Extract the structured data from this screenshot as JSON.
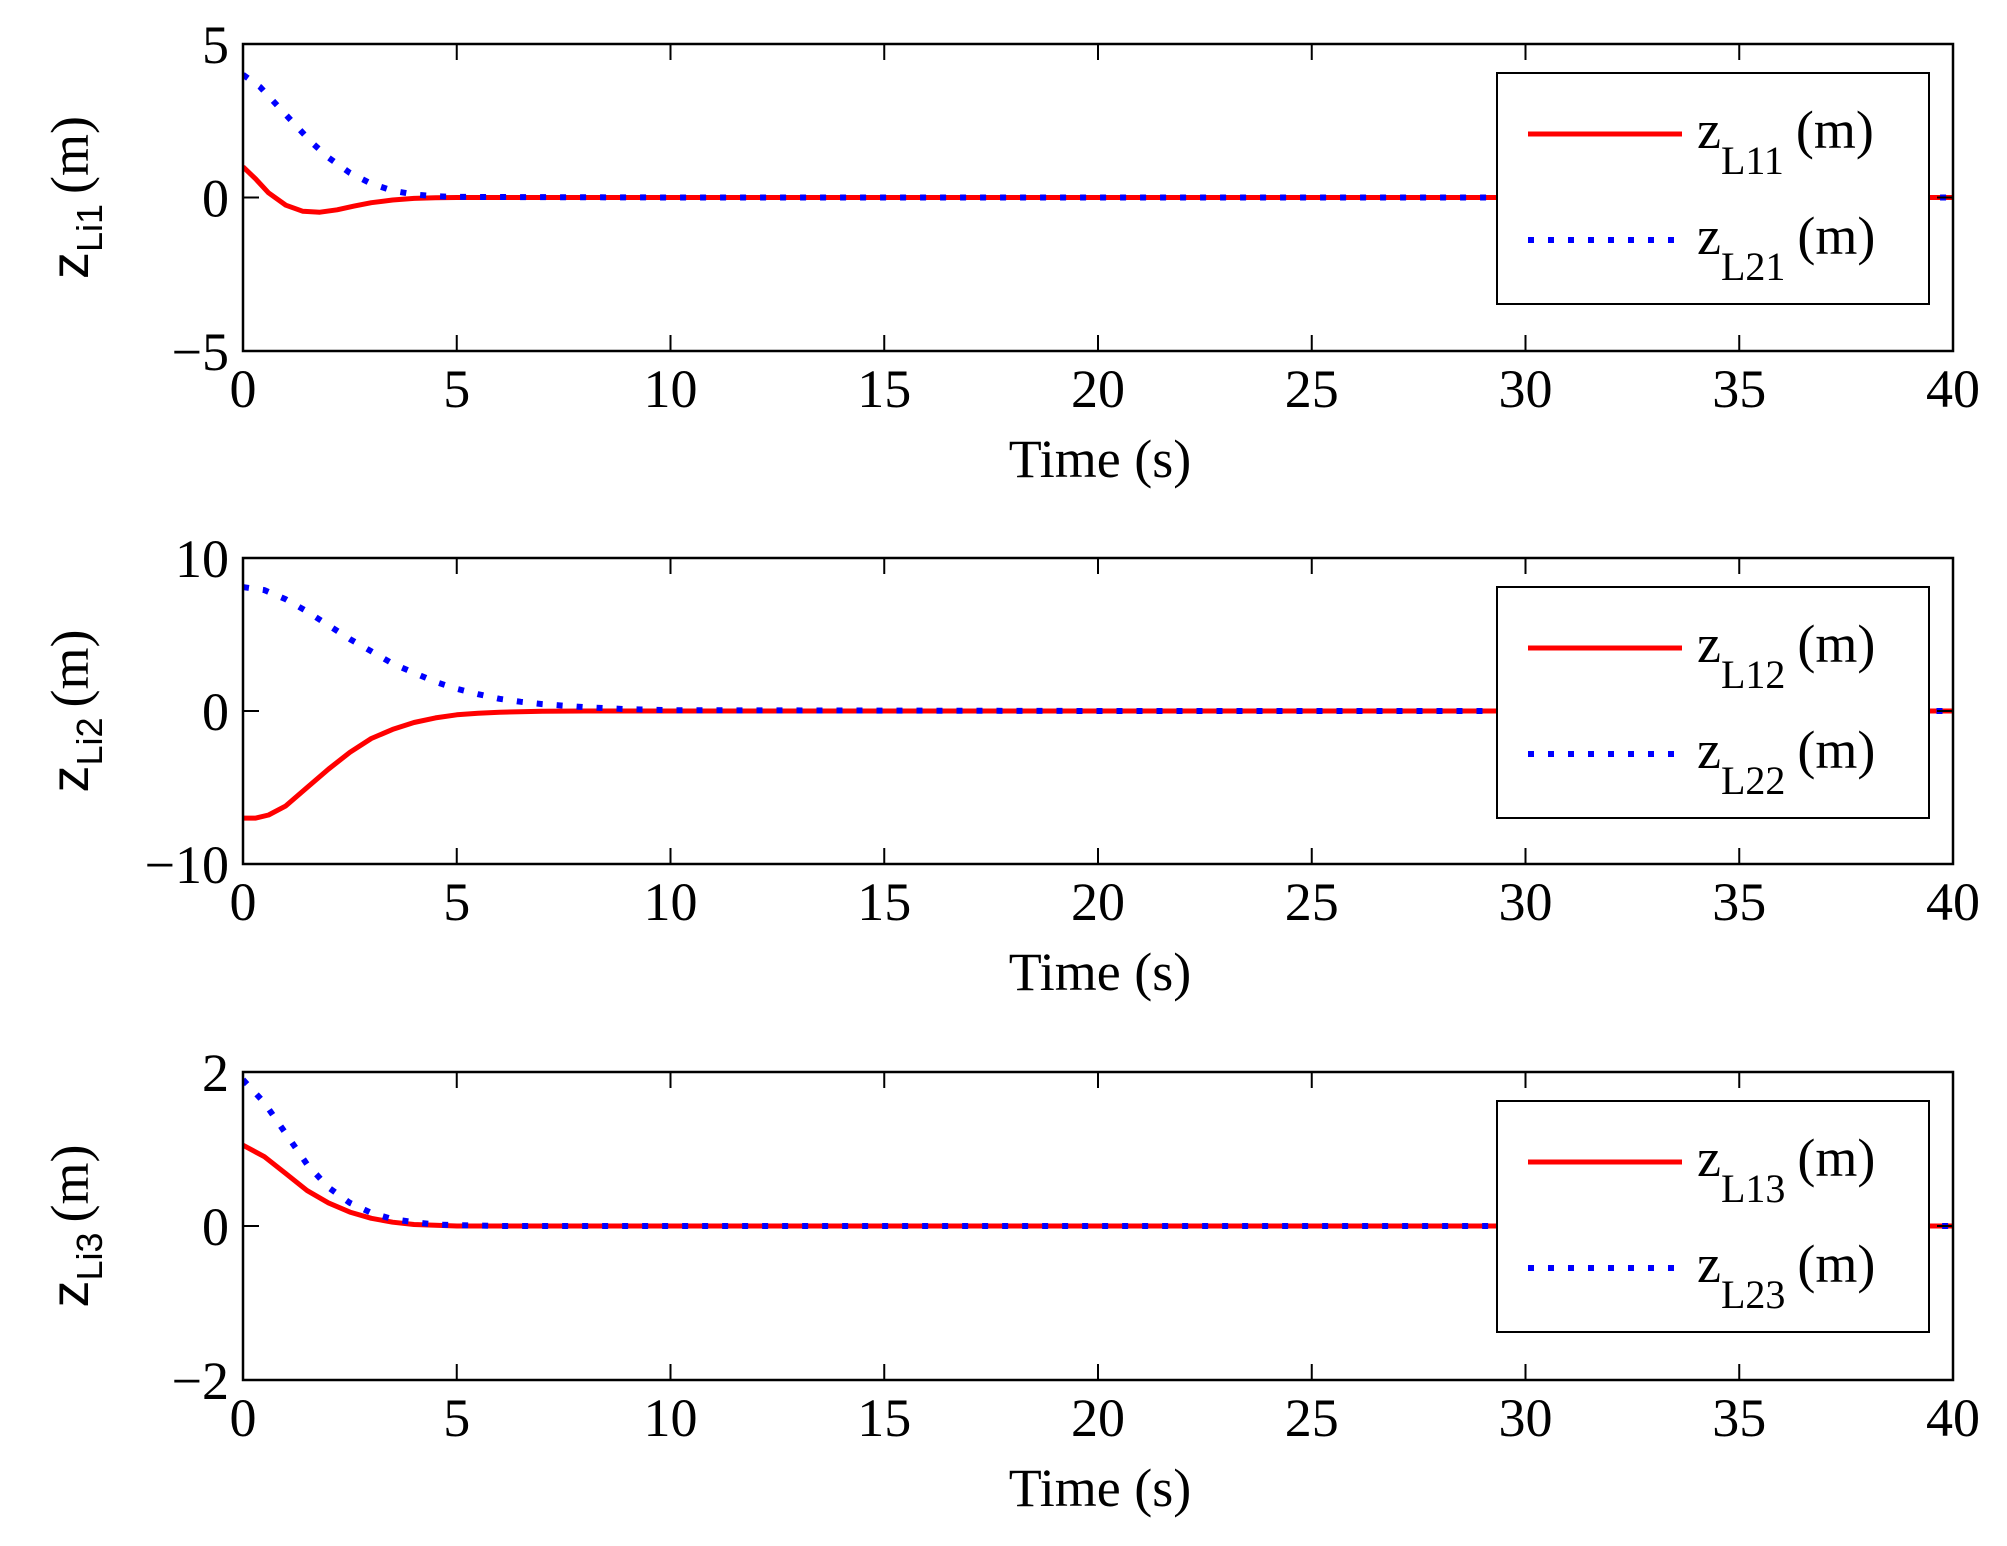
{
  "chart_data": [
    {
      "type": "line",
      "xlabel": "Time (s)",
      "ylabel": "z",
      "ylabel_sub": "Li1",
      "ylabel_unit": "(m)",
      "xlim": [
        0,
        40
      ],
      "ylim": [
        -5,
        5
      ],
      "xticks": [
        0,
        5,
        10,
        15,
        20,
        25,
        30,
        35,
        40
      ],
      "yticks": [
        -5,
        0,
        5
      ],
      "ytick_labels": [
        "−5",
        "0",
        "5"
      ],
      "legend_position": "top-right",
      "series": [
        {
          "name": "zL11 (m)",
          "legend_main": "z",
          "legend_sub": "L11",
          "legend_unit": "(m)",
          "color": "#ff0000",
          "style": "solid",
          "x": [
            0,
            0.3,
            0.6,
            1.0,
            1.4,
            1.8,
            2.2,
            2.6,
            3.0,
            3.5,
            4.0,
            4.5,
            5,
            10,
            20,
            30,
            40
          ],
          "y": [
            1.0,
            0.6,
            0.15,
            -0.25,
            -0.45,
            -0.48,
            -0.4,
            -0.28,
            -0.17,
            -0.08,
            -0.03,
            -0.01,
            0,
            0,
            0,
            0,
            0
          ]
        },
        {
          "name": "zL21 (m)",
          "legend_main": "z",
          "legend_sub": "L21",
          "legend_unit": "(m)",
          "color": "#0000ff",
          "style": "dotted",
          "x": [
            0,
            0.4,
            0.8,
            1.2,
            1.6,
            2.0,
            2.5,
            3.0,
            3.5,
            4.0,
            4.5,
            5,
            10,
            20,
            30,
            40
          ],
          "y": [
            4.0,
            3.6,
            3.0,
            2.4,
            1.8,
            1.3,
            0.8,
            0.45,
            0.22,
            0.1,
            0.04,
            0.02,
            0,
            0,
            0,
            0
          ]
        }
      ]
    },
    {
      "type": "line",
      "xlabel": "Time (s)",
      "ylabel": "z",
      "ylabel_sub": "Li2",
      "ylabel_unit": "(m)",
      "xlim": [
        0,
        40
      ],
      "ylim": [
        -10,
        10
      ],
      "xticks": [
        0,
        5,
        10,
        15,
        20,
        25,
        30,
        35,
        40
      ],
      "yticks": [
        -10,
        0,
        10
      ],
      "ytick_labels": [
        "−10",
        "0",
        "10"
      ],
      "legend_position": "top-right",
      "series": [
        {
          "name": "zL12 (m)",
          "legend_main": "z",
          "legend_sub": "L12",
          "legend_unit": "(m)",
          "color": "#ff0000",
          "style": "solid",
          "x": [
            0,
            0.3,
            0.6,
            1.0,
            1.5,
            2.0,
            2.5,
            3.0,
            3.5,
            4.0,
            4.5,
            5,
            5.5,
            6,
            7,
            8,
            10,
            20,
            30,
            40
          ],
          "y": [
            -7.0,
            -7.0,
            -6.8,
            -6.2,
            -5.0,
            -3.8,
            -2.7,
            -1.8,
            -1.2,
            -0.75,
            -0.45,
            -0.25,
            -0.15,
            -0.08,
            -0.02,
            0,
            0,
            0,
            0,
            0
          ]
        },
        {
          "name": "zL22 (m)",
          "legend_main": "z",
          "legend_sub": "L22",
          "legend_unit": "(m)",
          "color": "#0000ff",
          "style": "dotted",
          "x": [
            0,
            0.5,
            1.0,
            1.5,
            2.0,
            2.5,
            3.0,
            3.5,
            4.0,
            4.5,
            5,
            5.5,
            6,
            6.5,
            7,
            8,
            9,
            10,
            20,
            30,
            40
          ],
          "y": [
            8.1,
            7.9,
            7.3,
            6.5,
            5.6,
            4.7,
            3.9,
            3.1,
            2.5,
            1.9,
            1.45,
            1.1,
            0.8,
            0.6,
            0.45,
            0.25,
            0.12,
            0.05,
            0,
            0,
            0
          ]
        }
      ]
    },
    {
      "type": "line",
      "xlabel": "Time (s)",
      "ylabel": "z",
      "ylabel_sub": "Li3",
      "ylabel_unit": "(m)",
      "xlim": [
        0,
        40
      ],
      "ylim": [
        -2,
        2
      ],
      "xticks": [
        0,
        5,
        10,
        15,
        20,
        25,
        30,
        35,
        40
      ],
      "yticks": [
        -2,
        0,
        2
      ],
      "ytick_labels": [
        "−2",
        "0",
        "2"
      ],
      "legend_position": "top-right",
      "series": [
        {
          "name": "zL13 (m)",
          "legend_main": "z",
          "legend_sub": "L13",
          "legend_unit": "(m)",
          "color": "#ff0000",
          "style": "solid",
          "x": [
            0,
            0.5,
            1.0,
            1.5,
            2.0,
            2.5,
            3.0,
            3.5,
            4.0,
            4.5,
            5,
            10,
            20,
            30,
            40
          ],
          "y": [
            1.05,
            0.9,
            0.68,
            0.46,
            0.3,
            0.18,
            0.1,
            0.05,
            0.02,
            0.01,
            0,
            0,
            0,
            0,
            0
          ]
        },
        {
          "name": "zL23 (m)",
          "legend_main": "z",
          "legend_sub": "L23",
          "legend_unit": "(m)",
          "color": "#0000ff",
          "style": "dotted",
          "x": [
            0,
            0.5,
            1.0,
            1.5,
            2.0,
            2.5,
            3.0,
            3.5,
            4.0,
            4.5,
            5,
            6,
            10,
            20,
            30,
            40
          ],
          "y": [
            1.9,
            1.6,
            1.2,
            0.8,
            0.5,
            0.3,
            0.17,
            0.09,
            0.05,
            0.02,
            0.01,
            0,
            0,
            0,
            0,
            0
          ]
        }
      ]
    }
  ]
}
